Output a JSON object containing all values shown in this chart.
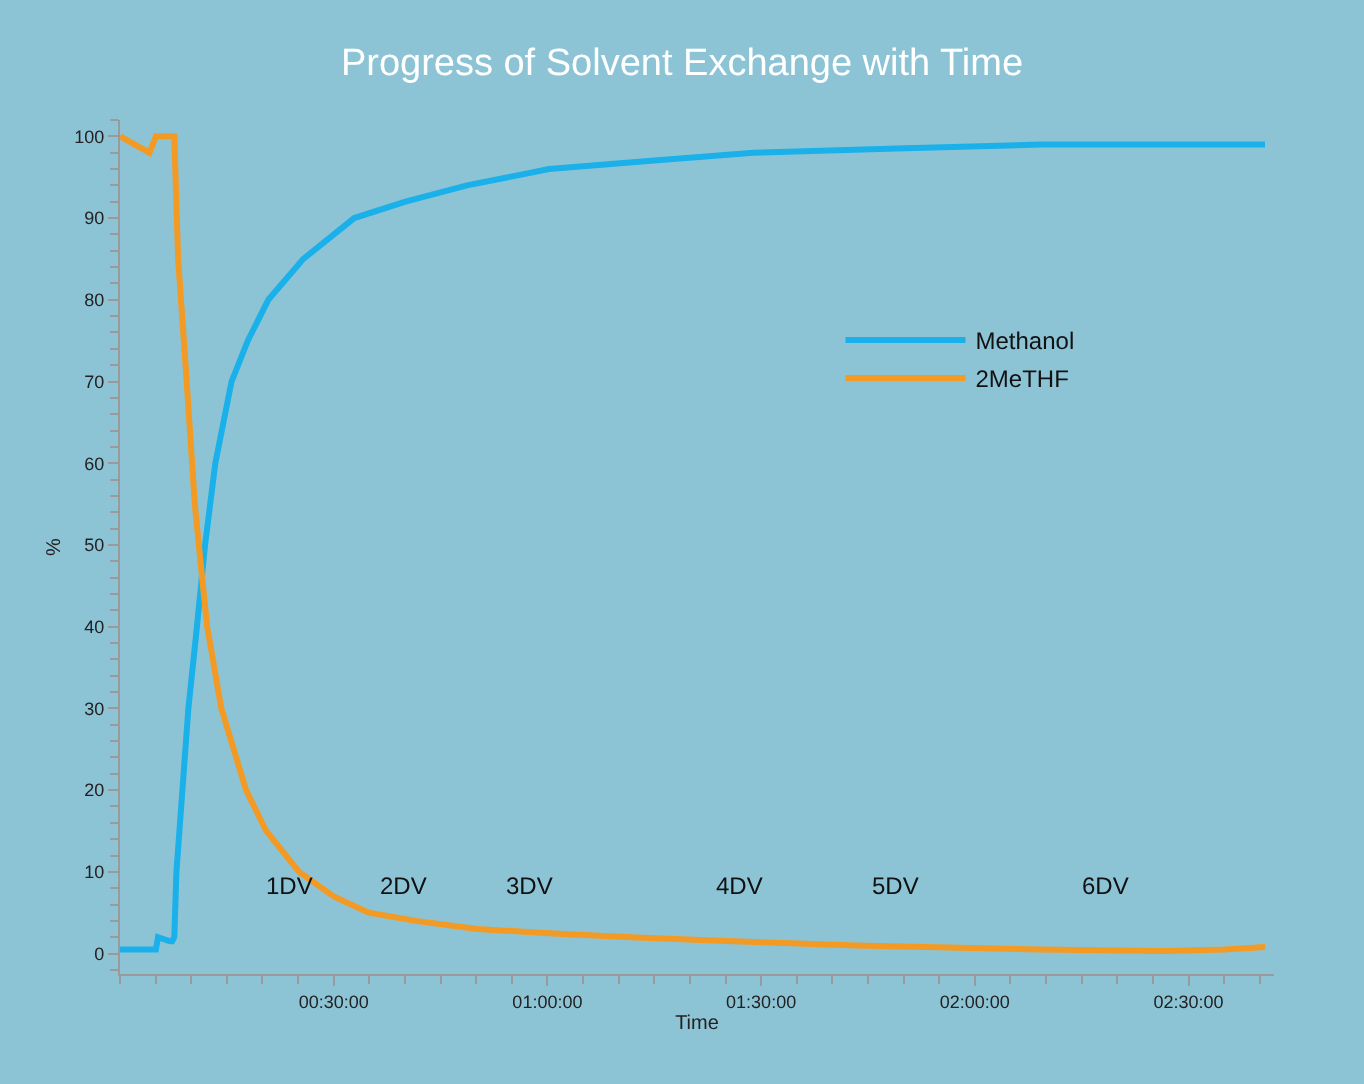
{
  "chart_data": {
    "type": "line",
    "title": "Progress of Solvent Exchange with Time",
    "xlabel": "Time",
    "ylabel": "%",
    "xlim": [
      0,
      2.7
    ],
    "xticks": [
      {
        "value": 0.5,
        "label": "00:30:00"
      },
      {
        "value": 1,
        "label": "01:00:00"
      },
      {
        "value": 1.5,
        "label": "01:30:00"
      },
      {
        "value": 2,
        "label": "02:00:00"
      },
      {
        "value": 2.5,
        "label": "02:30:00"
      }
    ],
    "ylim": [
      -2.5,
      102
    ],
    "yticks": [
      0,
      10,
      20,
      30,
      40,
      50,
      60,
      70,
      80,
      90,
      100
    ],
    "grid": false,
    "legend": "right",
    "marker": "none",
    "line_style": "solid",
    "series": [
      {
        "name": "Methanol",
        "color": "#1ab0ea",
        "x": [
          0,
          0.084,
          0.089,
          0.117,
          0.122,
          0.127,
          0.132,
          0.146,
          0.16,
          0.18,
          0.199,
          0.223,
          0.261,
          0.299,
          0.347,
          0.429,
          0.548,
          0.668,
          0.812,
          1.004,
          1.243,
          1.482,
          1.817,
          2.153,
          2.679
        ],
        "values": [
          0.5,
          0.5,
          2,
          1.5,
          1.5,
          2,
          10,
          20,
          30,
          40,
          50,
          60,
          70,
          75,
          80,
          85,
          90,
          92,
          94,
          96,
          97,
          98,
          98.5,
          99,
          99
        ]
      },
      {
        "name": "2MeTHF",
        "color": "#f39a24",
        "x": [
          0,
          0.069,
          0.084,
          0.117,
          0.127,
          0.136,
          0.156,
          0.175,
          0.194,
          0.204,
          0.237,
          0.295,
          0.342,
          0.419,
          0.5,
          0.582,
          0.692,
          0.836,
          1.004,
          1.195,
          1.434,
          1.722,
          2.153,
          2.44,
          2.584,
          2.679
        ],
        "values": [
          100,
          98,
          100,
          100,
          100,
          85,
          70,
          55,
          45,
          40,
          30,
          20,
          15,
          10,
          7,
          5,
          4,
          3,
          2.5,
          2,
          1.5,
          1,
          0.5,
          0.3,
          0.5,
          0.8
        ]
      }
    ],
    "annotations": [
      "1DV",
      "2DV",
      "3DV",
      "4DV",
      "5DV",
      "6DV"
    ]
  }
}
